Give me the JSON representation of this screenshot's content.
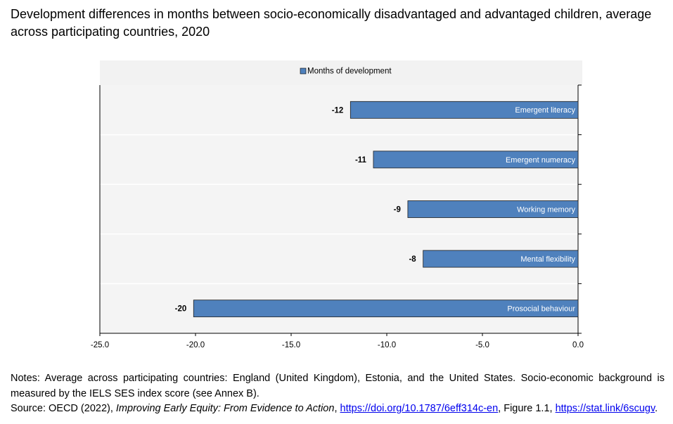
{
  "chart_data": {
    "type": "bar",
    "orientation": "horizontal",
    "title": "Development differences in months between socio-economically disadvantaged and advantaged children, average across participating countries, 2020",
    "categories": [
      "Emergent literacy",
      "Emergent numeracy",
      "Working memory",
      "Mental flexibility",
      "Prosocial behaviour"
    ],
    "series": [
      {
        "name": "Months of development",
        "color": "#4f81bd",
        "values": [
          -11.9,
          -10.7,
          -8.9,
          -8.1,
          -20.1
        ],
        "value_labels": [
          "-12",
          "-11",
          "-9",
          "-8",
          "-20"
        ]
      }
    ],
    "xlim": [
      -25,
      0
    ],
    "xticks": [
      {
        "value": -25,
        "label": "-25.0"
      },
      {
        "value": -20,
        "label": "-20.0"
      },
      {
        "value": -15,
        "label": "-15.0"
      },
      {
        "value": -10,
        "label": "-10.0"
      },
      {
        "value": -5,
        "label": "-5.0"
      },
      {
        "value": 0,
        "label": "0.0"
      }
    ],
    "legend": "top"
  },
  "notes": "Notes: Average across participating countries: England (United Kingdom), Estonia, and the United States. Socio-economic background is measured by the IELS SES index score (see Annex B).",
  "source": [
    "Source: OECD (2022), ",
    "Improving Early Equity: From Evidence to Action",
    ", ",
    "https://doi.org/10.1787/6eff314c-en",
    ", Figure 1.1, ",
    "https://stat.link/6scugv",
    "."
  ]
}
